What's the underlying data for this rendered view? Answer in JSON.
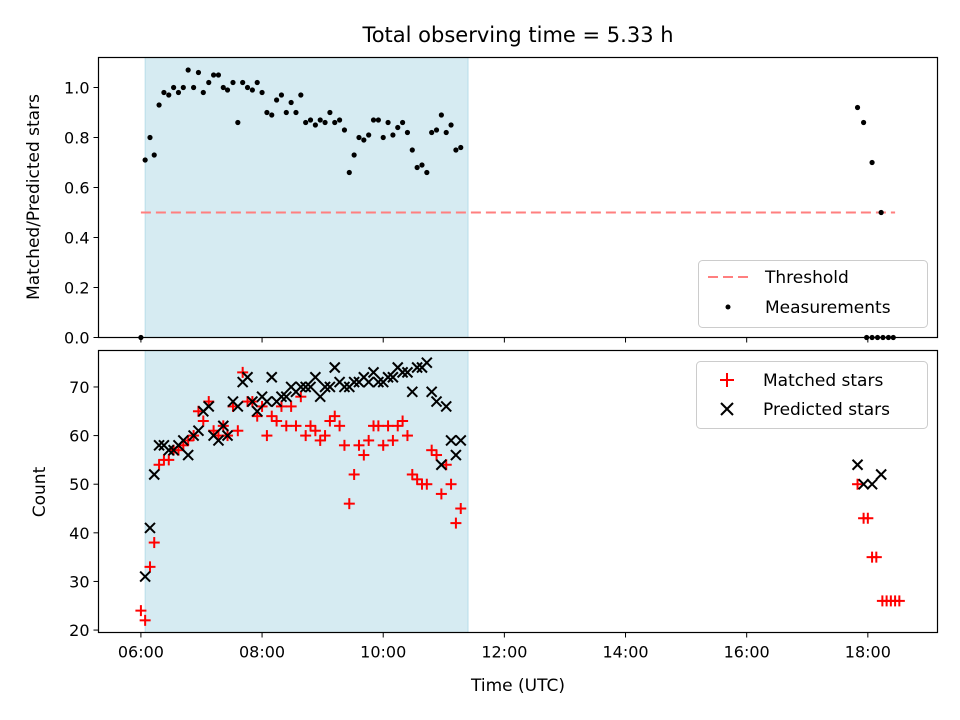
{
  "chart_data": [
    {
      "type": "scatter",
      "title": "Total observing time = 5.33 h",
      "ylabel": "Matched/Predicted stars",
      "xlabel": "",
      "xlim": [
        5.3,
        19.15
      ],
      "ylim": [
        0.0,
        1.12
      ],
      "x_ticks": [
        6,
        8,
        10,
        12,
        14,
        16,
        18
      ],
      "y_ticks": [
        0.0,
        0.2,
        0.4,
        0.6,
        0.8,
        1.0
      ],
      "y_tick_labels": [
        "0.0",
        "0.2",
        "0.4",
        "0.6",
        "0.8",
        "1.0"
      ],
      "shaded_span": {
        "x_start": 6.07,
        "x_end": 11.4,
        "color": "#add8e6"
      },
      "threshold": {
        "name": "Threshold",
        "y": 0.5,
        "x_start": 6.0,
        "x_end": 18.45,
        "color": "#ff7f7f"
      },
      "legend": {
        "position": "lower-right",
        "entries": [
          "Threshold",
          "Measurements"
        ]
      },
      "series": [
        {
          "name": "Measurements",
          "color": "#000000",
          "marker": "dot",
          "points": [
            [
              6.0,
              0.0
            ],
            [
              6.07,
              0.71
            ],
            [
              6.15,
              0.8
            ],
            [
              6.22,
              0.73
            ],
            [
              6.3,
              0.93
            ],
            [
              6.38,
              0.98
            ],
            [
              6.46,
              0.97
            ],
            [
              6.54,
              1.0
            ],
            [
              6.62,
              0.98
            ],
            [
              6.7,
              1.0
            ],
            [
              6.78,
              1.07
            ],
            [
              6.87,
              1.0
            ],
            [
              6.95,
              1.06
            ],
            [
              7.03,
              0.98
            ],
            [
              7.12,
              1.02
            ],
            [
              7.2,
              1.05
            ],
            [
              7.28,
              1.05
            ],
            [
              7.36,
              1.0
            ],
            [
              7.43,
              0.99
            ],
            [
              7.52,
              1.02
            ],
            [
              7.6,
              0.86
            ],
            [
              7.68,
              1.02
            ],
            [
              7.76,
              1.0
            ],
            [
              7.84,
              0.99
            ],
            [
              7.92,
              1.02
            ],
            [
              8.0,
              0.98
            ],
            [
              8.08,
              0.9
            ],
            [
              8.16,
              0.89
            ],
            [
              8.24,
              0.95
            ],
            [
              8.32,
              0.97
            ],
            [
              8.4,
              0.9
            ],
            [
              8.48,
              0.94
            ],
            [
              8.56,
              0.9
            ],
            [
              8.64,
              0.97
            ],
            [
              8.72,
              0.86
            ],
            [
              8.8,
              0.87
            ],
            [
              8.88,
              0.85
            ],
            [
              8.96,
              0.87
            ],
            [
              9.04,
              0.86
            ],
            [
              9.12,
              0.9
            ],
            [
              9.2,
              0.86
            ],
            [
              9.28,
              0.87
            ],
            [
              9.36,
              0.83
            ],
            [
              9.44,
              0.66
            ],
            [
              9.52,
              0.73
            ],
            [
              9.6,
              0.8
            ],
            [
              9.68,
              0.79
            ],
            [
              9.76,
              0.81
            ],
            [
              9.84,
              0.87
            ],
            [
              9.92,
              0.87
            ],
            [
              10.0,
              0.8
            ],
            [
              10.08,
              0.86
            ],
            [
              10.16,
              0.81
            ],
            [
              10.24,
              0.84
            ],
            [
              10.32,
              0.86
            ],
            [
              10.4,
              0.82
            ],
            [
              10.48,
              0.75
            ],
            [
              10.56,
              0.68
            ],
            [
              10.64,
              0.69
            ],
            [
              10.72,
              0.66
            ],
            [
              10.8,
              0.82
            ],
            [
              10.88,
              0.83
            ],
            [
              10.96,
              0.89
            ],
            [
              11.04,
              0.82
            ],
            [
              11.12,
              0.85
            ],
            [
              11.2,
              0.75
            ],
            [
              11.28,
              0.76
            ],
            [
              17.83,
              0.92
            ],
            [
              17.93,
              0.86
            ],
            [
              18.07,
              0.7
            ],
            [
              18.22,
              0.5
            ],
            [
              17.98,
              0.0
            ],
            [
              18.07,
              0.0
            ],
            [
              18.16,
              0.0
            ],
            [
              18.25,
              0.0
            ],
            [
              18.34,
              0.0
            ],
            [
              18.42,
              0.0
            ]
          ]
        }
      ]
    },
    {
      "type": "scatter",
      "title": "",
      "ylabel": "Count",
      "xlabel": "Time (UTC)",
      "xlim": [
        5.3,
        19.15
      ],
      "ylim": [
        19.5,
        77.5
      ],
      "x_ticks": [
        6,
        8,
        10,
        12,
        14,
        16,
        18
      ],
      "x_tick_labels": [
        "06:00",
        "08:00",
        "10:00",
        "12:00",
        "14:00",
        "16:00",
        "18:00"
      ],
      "y_ticks": [
        20,
        30,
        40,
        50,
        60,
        70
      ],
      "y_tick_labels": [
        "20",
        "30",
        "40",
        "50",
        "60",
        "70"
      ],
      "shaded_span": {
        "x_start": 6.07,
        "x_end": 11.4,
        "color": "#add8e6"
      },
      "legend": {
        "position": "top-right",
        "entries": [
          "Matched stars",
          "Predicted stars"
        ]
      },
      "series": [
        {
          "name": "Matched stars",
          "color": "#ff0000",
          "marker": "plus",
          "points": [
            [
              6.0,
              24
            ],
            [
              6.07,
              22
            ],
            [
              6.15,
              33
            ],
            [
              6.22,
              38
            ],
            [
              6.3,
              54
            ],
            [
              6.38,
              55
            ],
            [
              6.46,
              55
            ],
            [
              6.54,
              57
            ],
            [
              6.62,
              57
            ],
            [
              6.7,
              58
            ],
            [
              6.78,
              59
            ],
            [
              6.87,
              60
            ],
            [
              6.95,
              65
            ],
            [
              7.03,
              63
            ],
            [
              7.12,
              67
            ],
            [
              7.2,
              61
            ],
            [
              7.28,
              60
            ],
            [
              7.36,
              62
            ],
            [
              7.43,
              60
            ],
            [
              7.52,
              66
            ],
            [
              7.6,
              61
            ],
            [
              7.68,
              73
            ],
            [
              7.76,
              67
            ],
            [
              7.84,
              67
            ],
            [
              7.92,
              64
            ],
            [
              8.0,
              66
            ],
            [
              8.08,
              60
            ],
            [
              8.16,
              64
            ],
            [
              8.24,
              63
            ],
            [
              8.32,
              66
            ],
            [
              8.4,
              62
            ],
            [
              8.48,
              66
            ],
            [
              8.56,
              62
            ],
            [
              8.64,
              68
            ],
            [
              8.72,
              60
            ],
            [
              8.8,
              62
            ],
            [
              8.88,
              61
            ],
            [
              8.96,
              59
            ],
            [
              9.04,
              60
            ],
            [
              9.12,
              63
            ],
            [
              9.2,
              64
            ],
            [
              9.28,
              62
            ],
            [
              9.36,
              58
            ],
            [
              9.44,
              46
            ],
            [
              9.52,
              52
            ],
            [
              9.6,
              58
            ],
            [
              9.68,
              56
            ],
            [
              9.76,
              59
            ],
            [
              9.84,
              62
            ],
            [
              9.92,
              62
            ],
            [
              10.0,
              58
            ],
            [
              10.08,
              62
            ],
            [
              10.16,
              59
            ],
            [
              10.24,
              62
            ],
            [
              10.32,
              63
            ],
            [
              10.4,
              60
            ],
            [
              10.48,
              52
            ],
            [
              10.56,
              51
            ],
            [
              10.64,
              50
            ],
            [
              10.72,
              50
            ],
            [
              10.8,
              57
            ],
            [
              10.88,
              56
            ],
            [
              10.96,
              48
            ],
            [
              11.04,
              54
            ],
            [
              11.12,
              50
            ],
            [
              11.2,
              42
            ],
            [
              11.28,
              45
            ],
            [
              17.83,
              50
            ],
            [
              17.93,
              43
            ],
            [
              18.0,
              43
            ],
            [
              18.07,
              35
            ],
            [
              18.14,
              35
            ],
            [
              18.24,
              26
            ],
            [
              18.31,
              26
            ],
            [
              18.38,
              26
            ],
            [
              18.45,
              26
            ],
            [
              18.52,
              26
            ]
          ]
        },
        {
          "name": "Predicted stars",
          "color": "#000000",
          "marker": "x",
          "points": [
            [
              6.07,
              31
            ],
            [
              6.15,
              41
            ],
            [
              6.22,
              52
            ],
            [
              6.3,
              58
            ],
            [
              6.38,
              58
            ],
            [
              6.46,
              57
            ],
            [
              6.54,
              57
            ],
            [
              6.62,
              58
            ],
            [
              6.7,
              59
            ],
            [
              6.78,
              56
            ],
            [
              6.87,
              60
            ],
            [
              6.95,
              61
            ],
            [
              7.03,
              65
            ],
            [
              7.12,
              66
            ],
            [
              7.2,
              60
            ],
            [
              7.28,
              59
            ],
            [
              7.36,
              62
            ],
            [
              7.43,
              60
            ],
            [
              7.52,
              67
            ],
            [
              7.6,
              66
            ],
            [
              7.68,
              71
            ],
            [
              7.76,
              72
            ],
            [
              7.84,
              67
            ],
            [
              7.92,
              65
            ],
            [
              8.0,
              68
            ],
            [
              8.08,
              67
            ],
            [
              8.16,
              72
            ],
            [
              8.24,
              67
            ],
            [
              8.32,
              68
            ],
            [
              8.4,
              68
            ],
            [
              8.48,
              70
            ],
            [
              8.56,
              69
            ],
            [
              8.64,
              70
            ],
            [
              8.72,
              70
            ],
            [
              8.8,
              70
            ],
            [
              8.88,
              72
            ],
            [
              8.96,
              68
            ],
            [
              9.04,
              70
            ],
            [
              9.12,
              70
            ],
            [
              9.2,
              74
            ],
            [
              9.28,
              71
            ],
            [
              9.36,
              70
            ],
            [
              9.44,
              70
            ],
            [
              9.52,
              71
            ],
            [
              9.6,
              71
            ],
            [
              9.68,
              72
            ],
            [
              9.76,
              71
            ],
            [
              9.84,
              73
            ],
            [
              9.92,
              71
            ],
            [
              10.0,
              71
            ],
            [
              10.08,
              72
            ],
            [
              10.16,
              72
            ],
            [
              10.24,
              74
            ],
            [
              10.32,
              73
            ],
            [
              10.4,
              73
            ],
            [
              10.48,
              69
            ],
            [
              10.56,
              74
            ],
            [
              10.64,
              74
            ],
            [
              10.72,
              75
            ],
            [
              10.8,
              69
            ],
            [
              10.88,
              67
            ],
            [
              10.96,
              54
            ],
            [
              11.04,
              66
            ],
            [
              11.12,
              59
            ],
            [
              11.2,
              56
            ],
            [
              11.28,
              59
            ],
            [
              17.83,
              54
            ],
            [
              17.93,
              50
            ],
            [
              18.07,
              50
            ],
            [
              18.22,
              52
            ]
          ]
        }
      ]
    }
  ]
}
